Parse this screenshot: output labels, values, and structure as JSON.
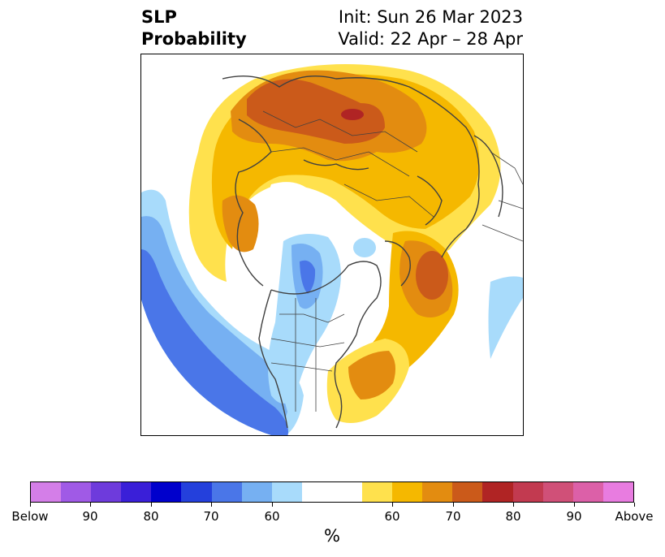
{
  "title": {
    "line1": "SLP",
    "line2": "Probability",
    "init": "Init: Sun 26 Mar 2023",
    "valid": "Valid: 22 Apr – 28 Apr"
  },
  "colorbar": {
    "unit": "%",
    "colors": [
      "#d47ee8",
      "#a05ae6",
      "#6e3bdc",
      "#3a1fd8",
      "#0000cc",
      "#2440dc",
      "#4a76e8",
      "#76b0f2",
      "#a8dbfb",
      "#ffffff",
      "#ffffff",
      "#ffe14d",
      "#f5b800",
      "#e38c10",
      "#cb5a1a",
      "#b02424",
      "#c23a50",
      "#d05078",
      "#dc60a8",
      "#e87ce0"
    ],
    "tick_labels": [
      "Below",
      "90",
      "80",
      "70",
      "60",
      "60",
      "70",
      "80",
      "90",
      "Above"
    ]
  },
  "map_colors": {
    "blue_light": "#a8dbfb",
    "blue_mid": "#76b0f2",
    "blue_deep": "#4a76e8",
    "yellow": "#ffe14d",
    "gold": "#f5b800",
    "orange": "#e38c10",
    "dark_orange": "#cb5a1a",
    "red": "#b02424",
    "coast": "#404040"
  }
}
